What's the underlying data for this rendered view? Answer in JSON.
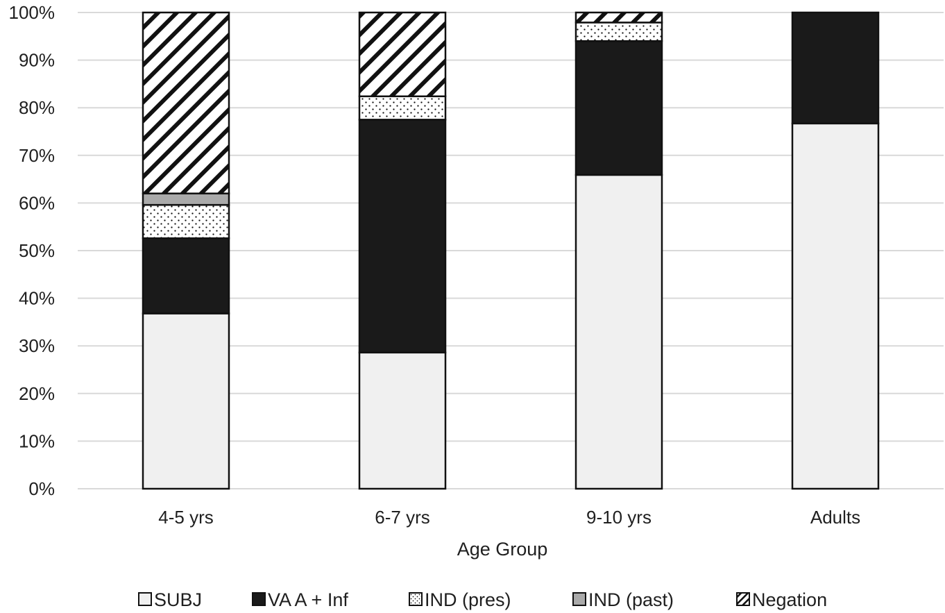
{
  "chart_data": {
    "type": "bar",
    "stacked": true,
    "percent": true,
    "title": "",
    "xlabel": "Age Group",
    "ylabel": "",
    "ylim": [
      0,
      100
    ],
    "yticks": [
      "0%",
      "10%",
      "20%",
      "30%",
      "40%",
      "50%",
      "60%",
      "70%",
      "80%",
      "90%",
      "100%"
    ],
    "categories": [
      "4-5 yrs",
      "6-7 yrs",
      "9-10 yrs",
      "Adults"
    ],
    "grid": true,
    "legend_position": "bottom",
    "series": [
      {
        "name": "SUBJ",
        "fill": "#f0f0f0",
        "pattern": "solid",
        "values": [
          36.8,
          28.6,
          65.9,
          76.7
        ]
      },
      {
        "name": "VA A + Inf",
        "fill": "#1a1a1a",
        "pattern": "solid",
        "values": [
          15.8,
          48.9,
          28.1,
          23.3
        ]
      },
      {
        "name": "IND (pres)",
        "fill": "#ffffff",
        "pattern": "dots",
        "values": [
          7.0,
          4.9,
          3.9,
          0
        ]
      },
      {
        "name": "IND (past)",
        "fill": "#aaaaaa",
        "pattern": "solid",
        "values": [
          2.4,
          0,
          0,
          0
        ]
      },
      {
        "name": "Negation",
        "fill": "#ffffff",
        "pattern": "diagonal",
        "values": [
          38.0,
          17.6,
          2.1,
          0
        ]
      }
    ]
  }
}
